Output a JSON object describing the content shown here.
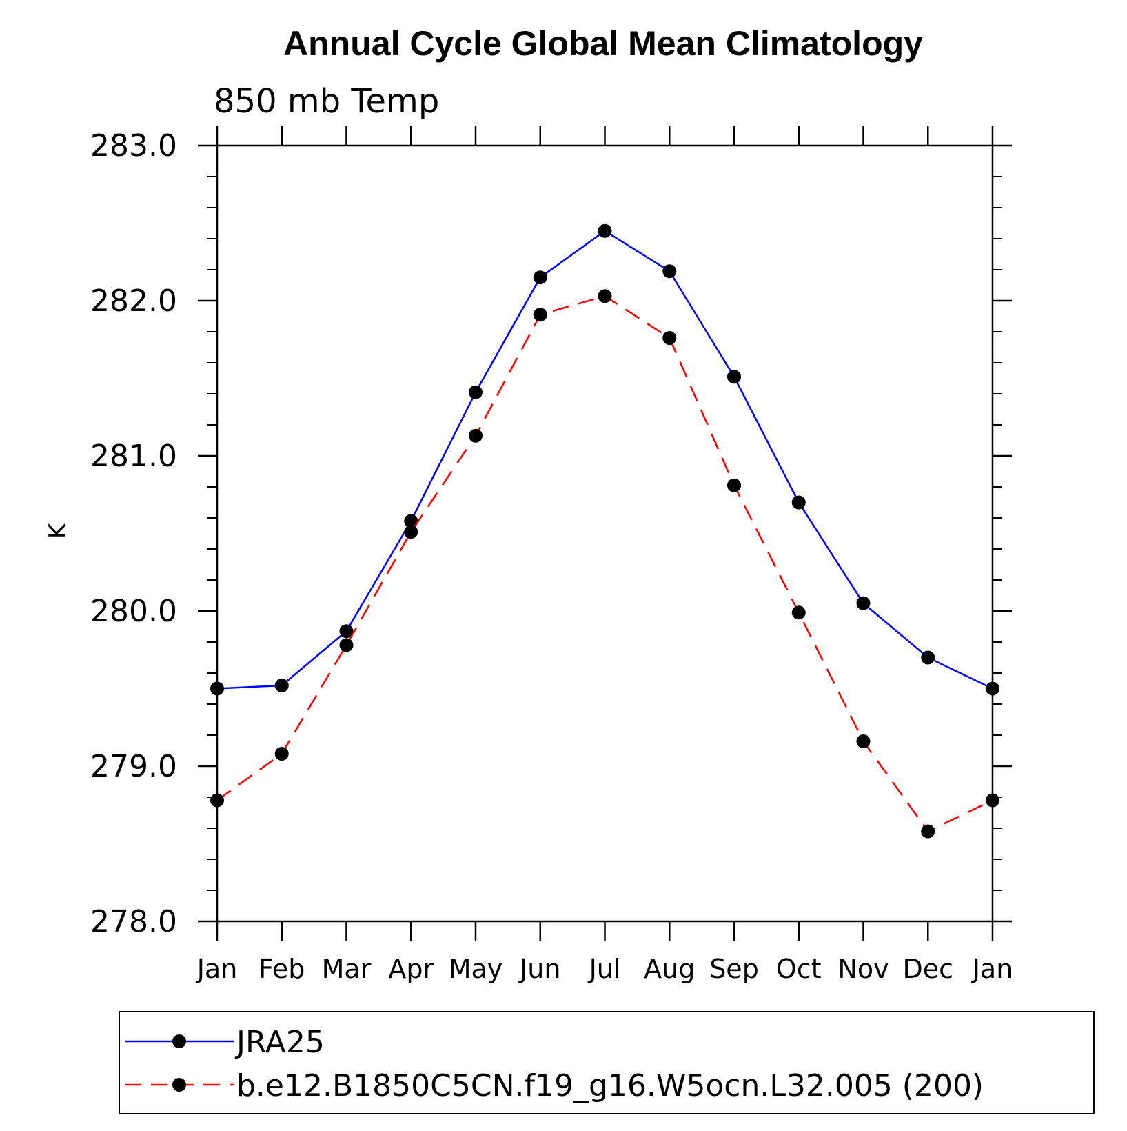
{
  "chart_data": {
    "type": "line",
    "title": "Annual Cycle Global Mean Climatology",
    "subtitle": "850 mb Temp",
    "xlabel": "",
    "ylabel": "K",
    "categories": [
      "Jan",
      "Feb",
      "Mar",
      "Apr",
      "May",
      "Jun",
      "Jul",
      "Aug",
      "Sep",
      "Oct",
      "Nov",
      "Dec",
      "Jan"
    ],
    "ylim": [
      278.0,
      283.0
    ],
    "yticks": [
      "278.0",
      "279.0",
      "280.0",
      "281.0",
      "282.0",
      "283.0"
    ],
    "ytick_values": [
      278.0,
      279.0,
      280.0,
      281.0,
      282.0,
      283.0
    ],
    "y_minor_step": 0.2,
    "grid": false,
    "legend_position": "bottom",
    "series": [
      {
        "name": "JRA25",
        "color": "#0000ff",
        "dash": "solid",
        "values": [
          279.5,
          279.52,
          279.87,
          280.58,
          281.41,
          282.15,
          282.45,
          282.19,
          281.51,
          280.7,
          280.05,
          279.7,
          279.5
        ]
      },
      {
        "name": "b.e12.B1850C5CN.f19_g16.W5ocn.L32.005 (200)",
        "color": "#ff0000",
        "dash": "dashed",
        "values": [
          278.78,
          279.08,
          279.78,
          280.51,
          281.13,
          281.91,
          282.03,
          281.76,
          280.81,
          279.99,
          279.16,
          278.58,
          278.78
        ]
      }
    ]
  }
}
